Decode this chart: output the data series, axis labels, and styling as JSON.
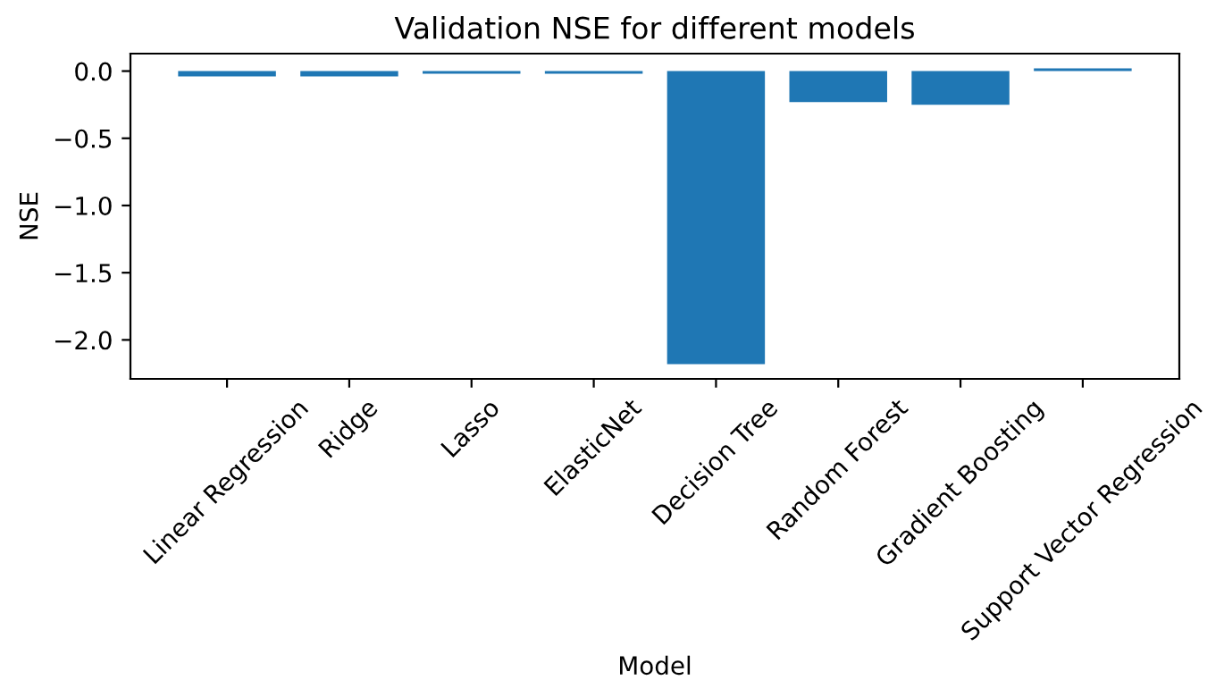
{
  "chart_data": {
    "type": "bar",
    "title": "Validation NSE for different models",
    "xlabel": "Model",
    "ylabel": "NSE",
    "categories": [
      "Linear Regression",
      "Ridge",
      "Lasso",
      "ElasticNet",
      "Decision Tree",
      "Random Forest",
      "Gradient Boosting",
      "Support Vector Regression"
    ],
    "values": [
      -0.04,
      -0.04,
      -0.02,
      -0.02,
      -2.18,
      -0.23,
      -0.25,
      0.02
    ],
    "color": "#1f77b4",
    "ylim": [
      -2.29,
      0.13
    ],
    "yticks": [
      {
        "value": 0.0,
        "label": "0.0"
      },
      {
        "value": -0.5,
        "label": "−0.5"
      },
      {
        "value": -1.0,
        "label": "−1.0"
      },
      {
        "value": -1.5,
        "label": "−1.5"
      },
      {
        "value": -2.0,
        "label": "−2.0"
      }
    ],
    "grid": false
  }
}
